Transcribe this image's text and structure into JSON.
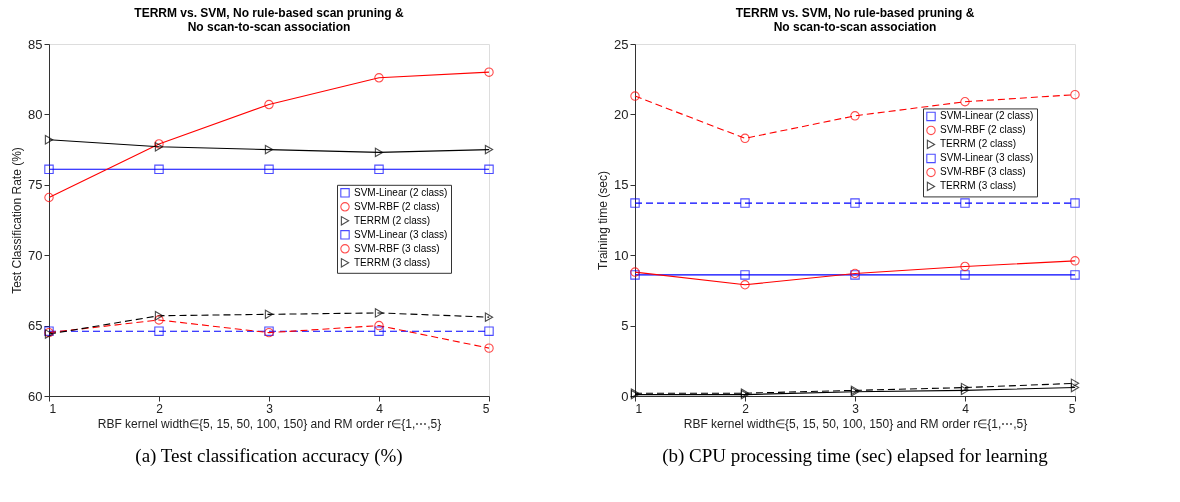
{
  "chart_data": [
    {
      "type": "line",
      "title": "TERRM vs. SVM, No rule-based scan pruning &\nNo scan-to-scan association",
      "xlabel": "RBF kernel width∈{5, 15, 50, 100, 150} and RM order r∈{1,⋯,5}",
      "ylabel": "Test Classification Rate (%)",
      "x": [
        1,
        2,
        3,
        4,
        5
      ],
      "xlim": [
        1,
        5
      ],
      "xticks": [
        1,
        2,
        3,
        4,
        5
      ],
      "ylim": [
        60,
        85
      ],
      "yticks": [
        60,
        65,
        70,
        75,
        80,
        85
      ],
      "grid": false,
      "legend": "right",
      "annotations": [
        "(a)  Test classification accuracy (%)"
      ],
      "series": [
        {
          "name": "SVM-Linear (2 class)",
          "color": "#0000ff",
          "marker": "square",
          "line_style": "solid",
          "values": [
            76.1,
            76.1,
            76.1,
            76.1,
            76.1
          ]
        },
        {
          "name": "SVM-RBF (2 class)",
          "color": "#ff0000",
          "marker": "circle",
          "line_style": "solid",
          "values": [
            74.1,
            77.9,
            80.7,
            82.6,
            83.0
          ]
        },
        {
          "name": "TERRM (2 class)",
          "color": "#000000",
          "marker": "triangle",
          "line_style": "solid",
          "values": [
            78.2,
            77.7,
            77.5,
            77.3,
            77.5
          ]
        },
        {
          "name": "SVM-Linear (3 class)",
          "color": "#0000ff",
          "marker": "square",
          "line_style": "dashed",
          "values": [
            64.6,
            64.6,
            64.6,
            64.6,
            64.6
          ]
        },
        {
          "name": "SVM-RBF (3 class)",
          "color": "#ff0000",
          "marker": "circle",
          "line_style": "dashed",
          "values": [
            64.5,
            65.4,
            64.5,
            65.0,
            63.4
          ]
        },
        {
          "name": "TERRM (3 class)",
          "color": "#000000",
          "marker": "triangle",
          "line_style": "dashed",
          "values": [
            64.4,
            65.7,
            65.8,
            65.9,
            65.6
          ]
        }
      ]
    },
    {
      "type": "line",
      "title": "TERRM vs. SVM, No rule-based pruning &\nNo scan-to-scan association",
      "xlabel": "RBF kernel width∈{5, 15, 50, 100, 150} and RM order r∈{1,⋯,5}",
      "ylabel": "Training time (sec)",
      "x": [
        1,
        2,
        3,
        4,
        5
      ],
      "xlim": [
        1,
        5
      ],
      "xticks": [
        1,
        2,
        3,
        4,
        5
      ],
      "ylim": [
        0,
        25
      ],
      "yticks": [
        0,
        5,
        10,
        15,
        20,
        25
      ],
      "grid": false,
      "legend": "top right",
      "annotations": [
        "(b)  CPU processing time (sec) elapsed for learning"
      ],
      "series": [
        {
          "name": "SVM-Linear (2 class)",
          "color": "#0000ff",
          "marker": "square",
          "line_style": "solid",
          "values": [
            8.6,
            8.6,
            8.6,
            8.6,
            8.6
          ]
        },
        {
          "name": "SVM-RBF (2 class)",
          "color": "#ff0000",
          "marker": "circle",
          "line_style": "solid",
          "values": [
            8.8,
            7.9,
            8.7,
            9.2,
            9.6
          ]
        },
        {
          "name": "TERRM (2 class)",
          "color": "#000000",
          "marker": "triangle",
          "line_style": "solid",
          "values": [
            0.1,
            0.1,
            0.3,
            0.4,
            0.6
          ]
        },
        {
          "name": "SVM-Linear (3 class)",
          "color": "#0000ff",
          "marker": "square",
          "line_style": "dashed",
          "values": [
            13.7,
            13.7,
            13.7,
            13.7,
            13.7
          ]
        },
        {
          "name": "SVM-RBF (3 class)",
          "color": "#ff0000",
          "marker": "circle",
          "line_style": "dashed",
          "values": [
            21.3,
            18.3,
            19.9,
            20.9,
            21.4
          ]
        },
        {
          "name": "TERRM (3 class)",
          "color": "#000000",
          "marker": "triangle",
          "line_style": "dashed",
          "values": [
            0.2,
            0.2,
            0.4,
            0.6,
            0.9
          ]
        }
      ]
    }
  ]
}
